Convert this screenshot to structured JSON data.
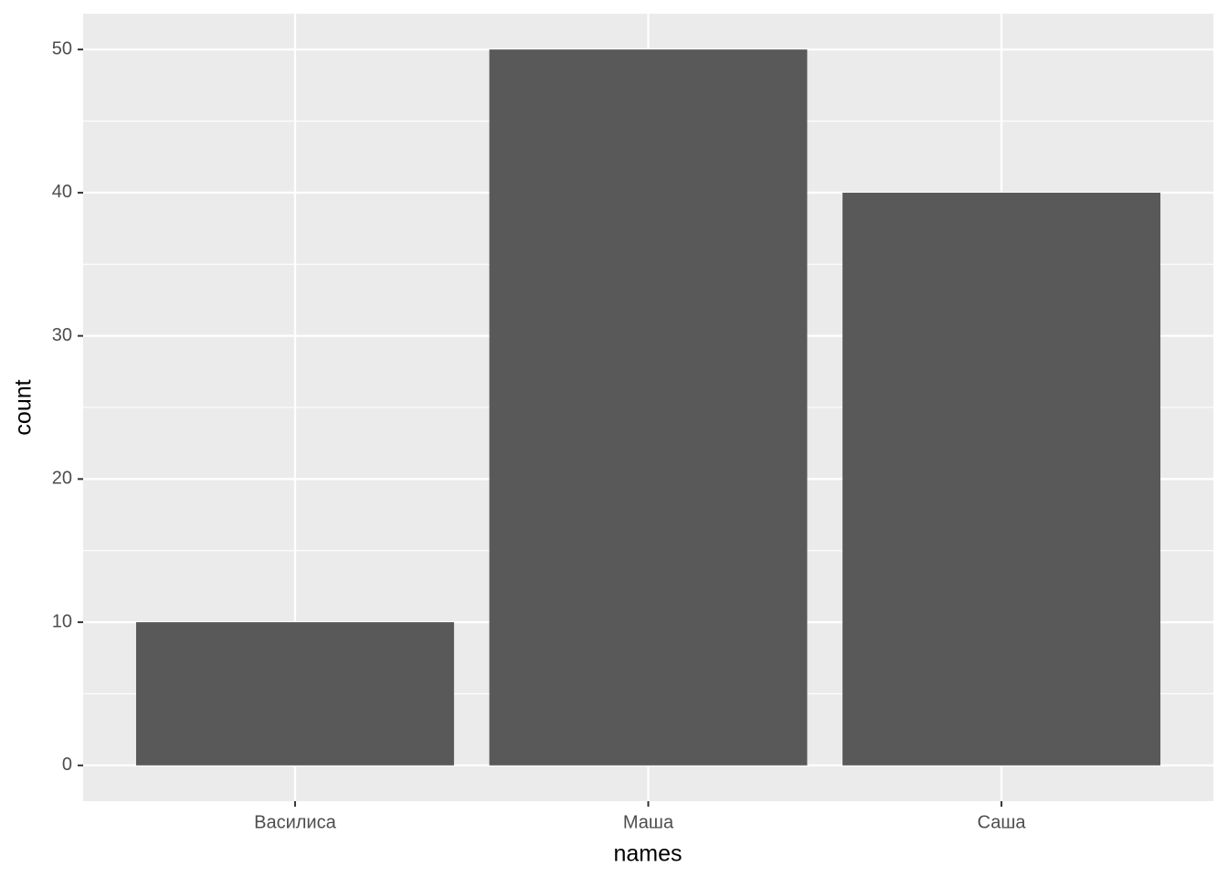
{
  "chart_data": {
    "type": "bar",
    "x_label": "names",
    "y_label": "count",
    "categories": [
      "Василиса",
      "Маша",
      "Саша"
    ],
    "values": [
      10,
      50,
      40
    ],
    "color": "#595959",
    "ylim": [
      -2.5,
      52.5
    ],
    "yticks": [
      0,
      10,
      20,
      30,
      40,
      50
    ],
    "grid": true,
    "minor_grid": true
  }
}
